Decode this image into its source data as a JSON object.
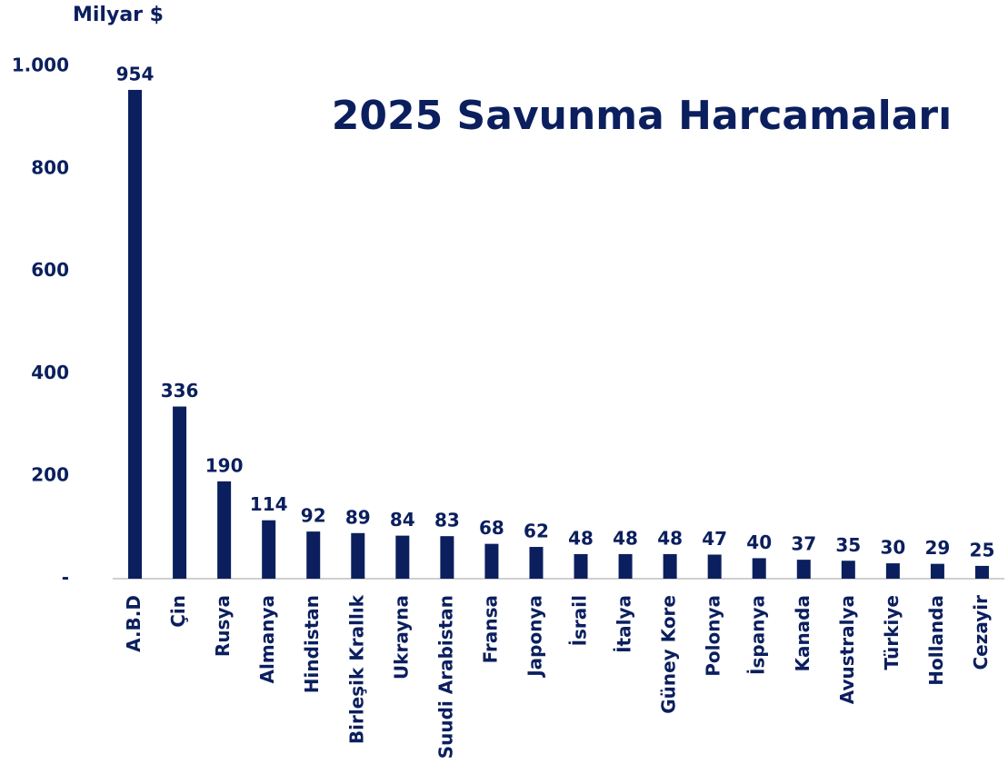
{
  "chart_data": {
    "type": "bar",
    "title": "2025 Savunma Harcamaları",
    "y_axis_label": "Milyar $",
    "categories": [
      "A.B.D",
      "Çin",
      "Rusya",
      "Almanya",
      "Hindistan",
      "Birleşik Krallık",
      "Ukrayna",
      "Suudi Arabistan",
      "Fransa",
      "Japonya",
      "İsrail",
      "İtalya",
      "Güney Kore",
      "Polonya",
      "İspanya",
      "Kanada",
      "Avustralya",
      "Türkiye",
      "Hollanda",
      "Cezayir"
    ],
    "values": [
      954,
      336,
      190,
      114,
      92,
      89,
      84,
      83,
      68,
      62,
      48,
      48,
      48,
      47,
      40,
      37,
      35,
      30,
      29,
      25
    ],
    "color": "#0b1f5e",
    "ylim": [
      0,
      1000
    ],
    "yticks": [
      {
        "value": 0,
        "label": "-"
      },
      200,
      400,
      600,
      800,
      {
        "value": 1000,
        "label": "1.000"
      }
    ],
    "grid": false
  }
}
